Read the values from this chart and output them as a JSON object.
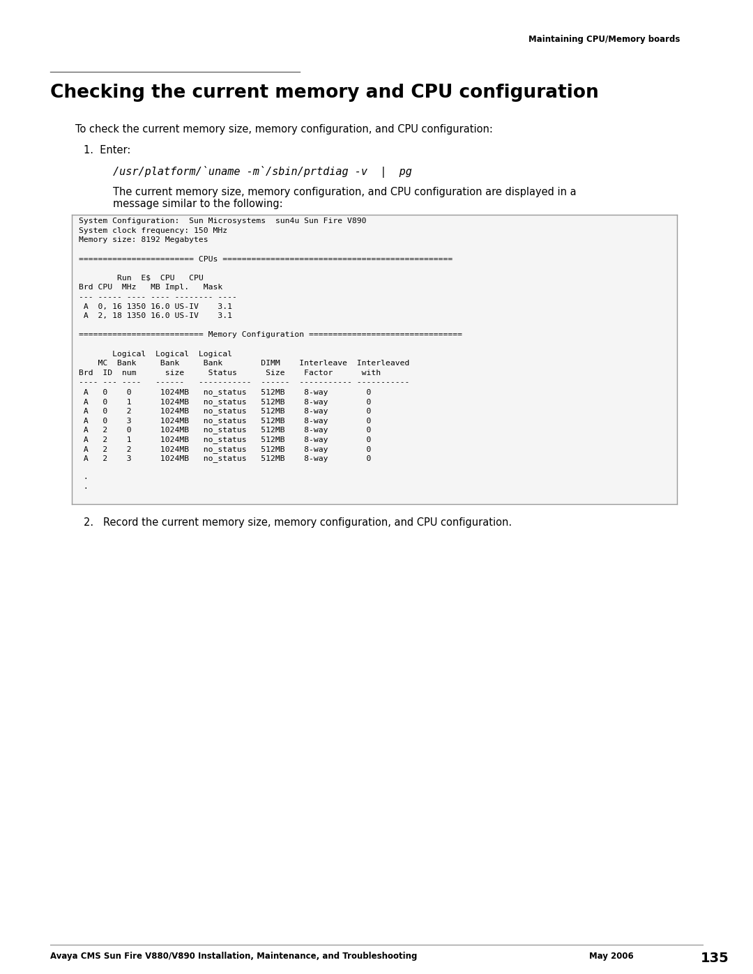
{
  "page_header": "Maintaining CPU/Memory boards",
  "section_title": "Checking the current memory and CPU configuration",
  "intro_text": "To check the current memory size, memory configuration, and CPU configuration:",
  "step1_label": "1.  Enter:",
  "command_text": "/usr/platform/`uname -m`/sbin/prtdiag -v  |  pg",
  "step1_desc_line1": "The current memory size, memory configuration, and CPU configuration are displayed in a",
  "step1_desc_line2": "message similar to the following:",
  "code_block": [
    "System Configuration:  Sun Microsystems  sun4u Sun Fire V890",
    "System clock frequency: 150 MHz",
    "Memory size: 8192 Megabytes",
    "",
    "======================== CPUs ================================================",
    "",
    "        Run  E$  CPU   CPU",
    "Brd CPU  MHz   MB Impl.   Mask",
    "--- ----- ---- ---- -------- ----",
    " A  0, 16 1350 16.0 US-IV    3.1",
    " A  2, 18 1350 16.0 US-IV    3.1",
    "",
    "========================== Memory Configuration ================================",
    "",
    "       Logical  Logical  Logical",
    "    MC  Bank     Bank     Bank        DIMM    Interleave  Interleaved",
    "Brd  ID  num      size     Status      Size    Factor      with",
    "---- --- ----   ------   -----------  ------  ----------- -----------",
    " A   0    0      1024MB   no_status   512MB    8-way        0",
    " A   0    1      1024MB   no_status   512MB    8-way        0",
    " A   0    2      1024MB   no_status   512MB    8-way        0",
    " A   0    3      1024MB   no_status   512MB    8-way        0",
    " A   2    0      1024MB   no_status   512MB    8-way        0",
    " A   2    1      1024MB   no_status   512MB    8-way        0",
    " A   2    2      1024MB   no_status   512MB    8-way        0",
    " A   2    3      1024MB   no_status   512MB    8-way        0",
    "",
    " .",
    " ."
  ],
  "step2_text": "Record the current memory size, memory configuration, and CPU configuration.",
  "footer_left": "Avaya CMS Sun Fire V880/V890 Installation, Maintenance, and Troubleshooting",
  "footer_right_text": "May 2006",
  "footer_page": "135",
  "bg_color": "#ffffff",
  "code_bg": "#f5f5f5",
  "code_border": "#999999",
  "text_color": "#000000",
  "header_line_color": "#666666"
}
